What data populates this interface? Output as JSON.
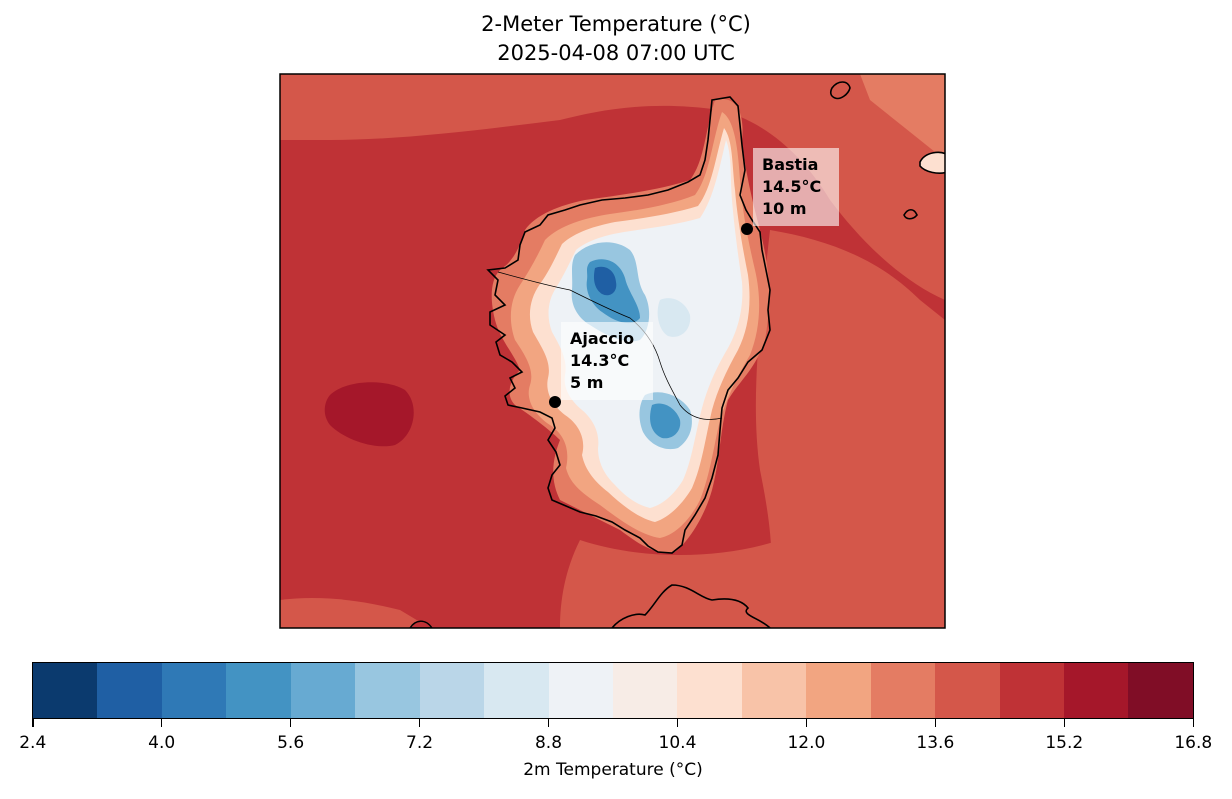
{
  "title": "2-Meter Temperature (°C)",
  "subtitle": "2025-04-08 07:00 UTC",
  "stations": [
    {
      "name": "Bastia",
      "temp": "14.5°C",
      "elev": "10 m"
    },
    {
      "name": "Ajaccio",
      "temp": "14.3°C",
      "elev": "5 m"
    }
  ],
  "colorbar": {
    "label": "2m Temperature (°C)",
    "ticks": [
      "2.4",
      "4.0",
      "5.6",
      "7.2",
      "8.8",
      "10.4",
      "12.0",
      "13.6",
      "15.2",
      "16.8"
    ],
    "colors": [
      "#0b3a6e",
      "#1f5fa4",
      "#2f79b6",
      "#4393c3",
      "#67aad2",
      "#98c6e0",
      "#bad6e8",
      "#d8e8f1",
      "#eef2f6",
      "#f7ece6",
      "#fde0d0",
      "#f8c3a8",
      "#f2a581",
      "#e47c63",
      "#d4574a",
      "#bf3236",
      "#a5172a",
      "#800d26"
    ]
  },
  "map": {
    "base_color": "#bf3236",
    "warm_color": "#a5172a",
    "coast_color": "#d4574a"
  }
}
